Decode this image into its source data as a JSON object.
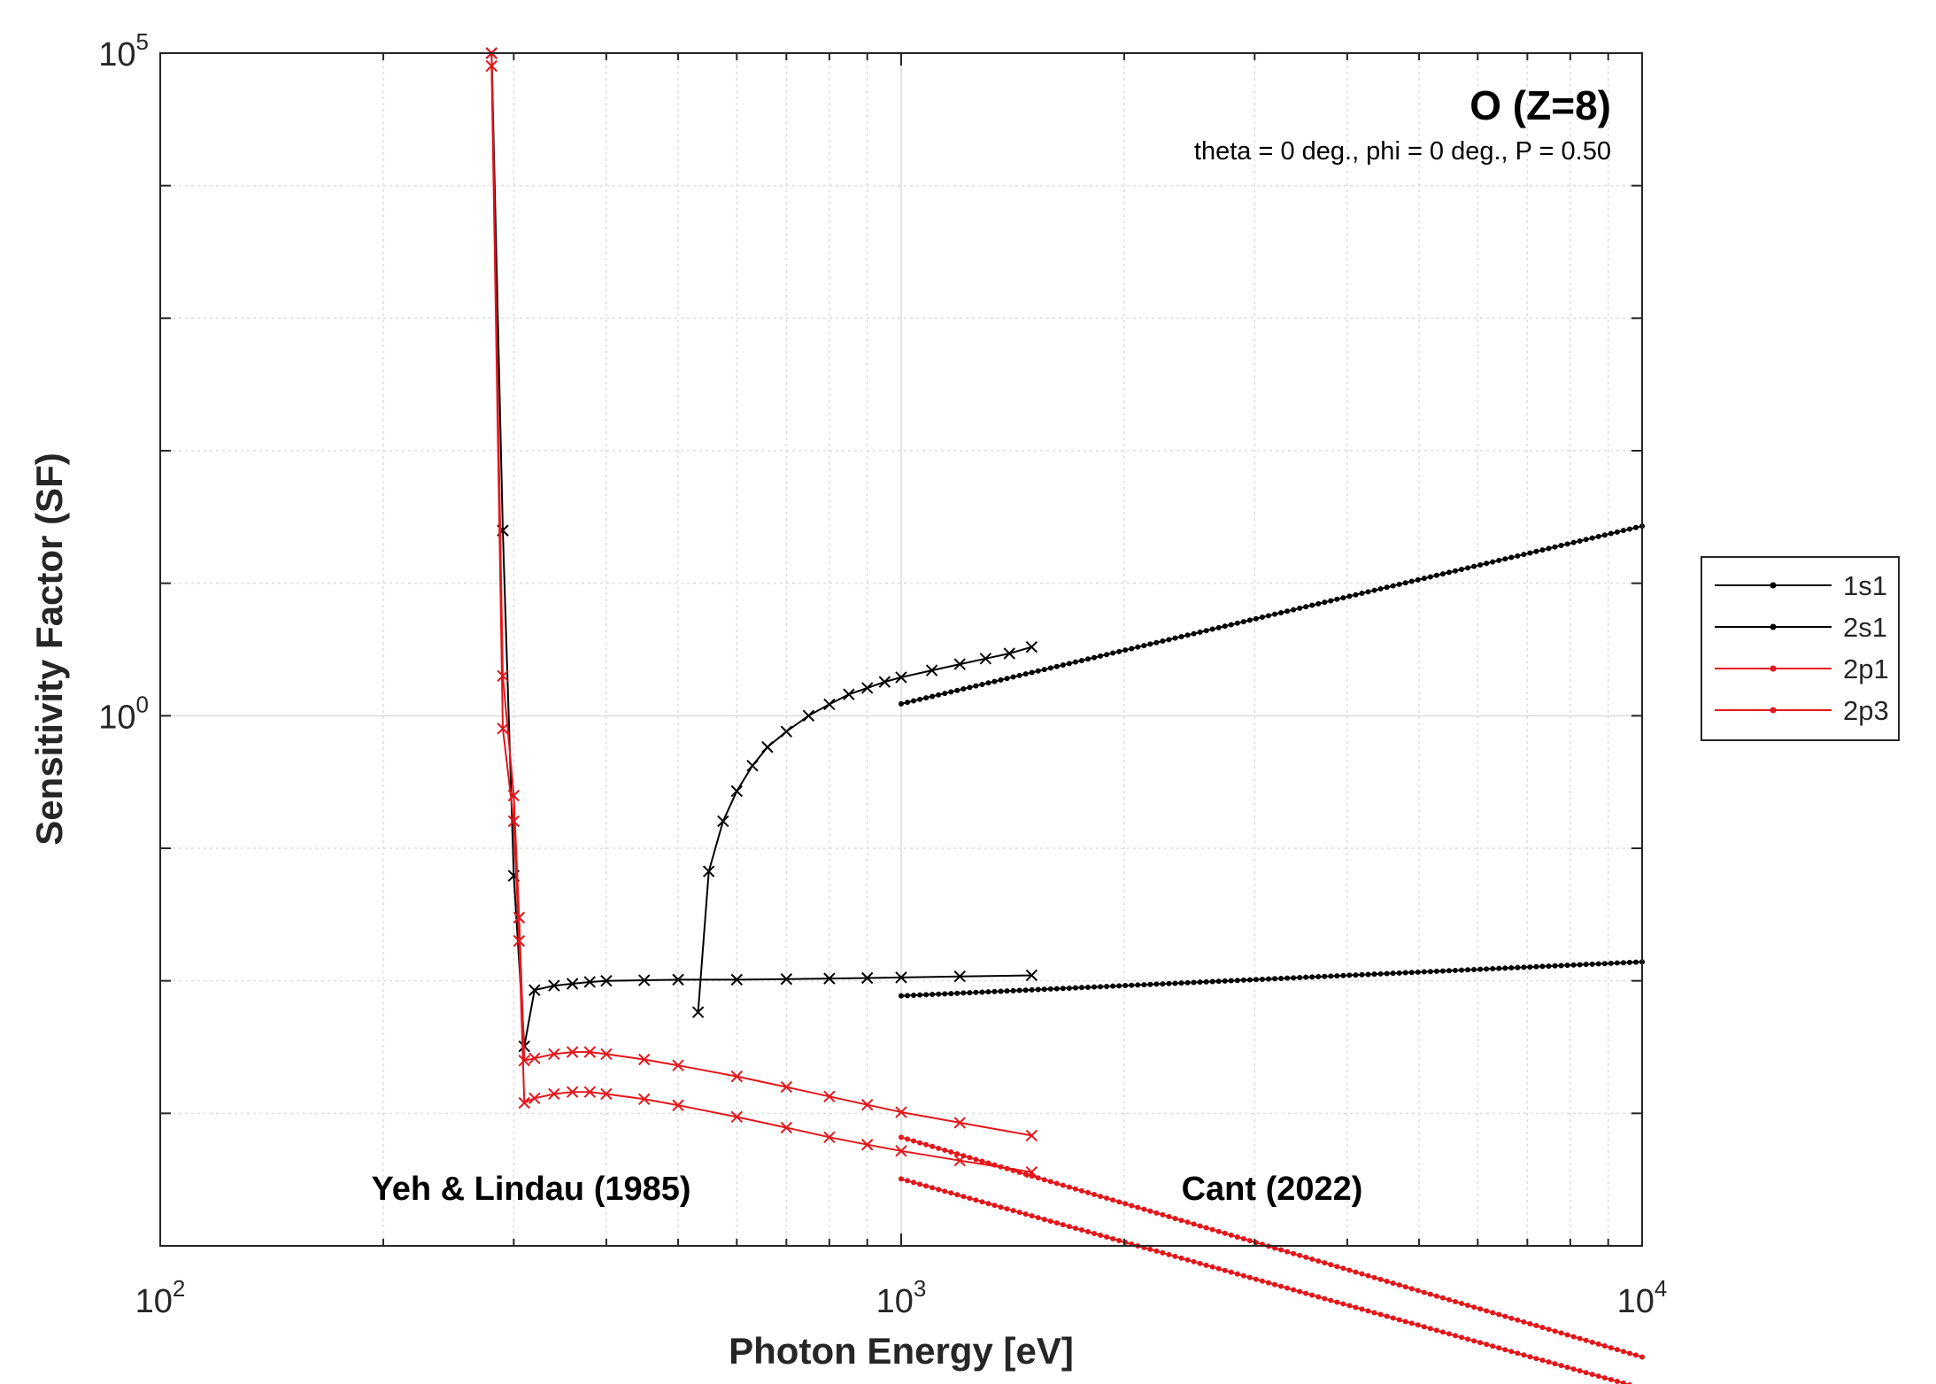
{
  "chart_data": {
    "type": "line",
    "title": "O (Z=8)",
    "subtitle": "theta = 0 deg., phi = 0 deg., P = 0.50",
    "xlabel": "Photon Energy [eV]",
    "ylabel": "Sensitivity Factor (SF)",
    "xscale": "log",
    "yscale": "log",
    "xlim": [
      100,
      10000
    ],
    "ylim": [
      0.0001,
      100000
    ],
    "xticks": [
      100,
      1000,
      10000
    ],
    "xtick_labels": [
      {
        "base": "10",
        "exp": "2"
      },
      {
        "base": "10",
        "exp": "3"
      },
      {
        "base": "10",
        "exp": "4"
      }
    ],
    "yticks": [
      1,
      100000
    ],
    "ytick_labels": [
      {
        "base": "10",
        "exp": "0"
      },
      {
        "base": "10",
        "exp": "5"
      }
    ],
    "grid": true,
    "legend_position": "outside-right",
    "colors": {
      "black": "#000000",
      "red": "#e3161b",
      "grid": "#dcdcdc",
      "axis": "#262626"
    },
    "annotations": [
      {
        "text": "Yeh & Lindau (1985)",
        "x": 200,
        "y": 0.00022
      },
      {
        "text": "Cant (2022)",
        "x": 3000,
        "y": 0.00022
      }
    ],
    "series": [
      {
        "name": "1s1",
        "color": "#000000",
        "marker": "dot",
        "source": "Cant (2022)",
        "x": [
          1000,
          10000
        ],
        "y": [
          1.23,
          27
        ],
        "points": 120
      },
      {
        "name": "2s1",
        "color": "#000000",
        "marker": "dot",
        "source": "Cant (2022)",
        "x": [
          1000,
          10000
        ],
        "y": [
          0.0077,
          0.0139
        ],
        "points": 120
      },
      {
        "name": "2p1",
        "color": "#e3161b",
        "marker": "dot",
        "source": "Cant (2022)",
        "x": [
          1000,
          10000
        ],
        "y": [
          0.00032,
          8.4e-06
        ],
        "points": 120
      },
      {
        "name": "2p3",
        "color": "#e3161b",
        "marker": "dot",
        "source": "Cant (2022)",
        "x": [
          1000,
          10000
        ],
        "y": [
          0.00066,
          1.45e-05
        ],
        "points": 120
      },
      {
        "color": "#000000",
        "marker": "x",
        "source": "Yeh & Lindau (1985)",
        "x": [
          532,
          550,
          575,
          600,
          630,
          660,
          700,
          750,
          800,
          850,
          900,
          950,
          1000,
          1100,
          1200,
          1300,
          1400,
          1500
        ],
        "y": [
          0.0058,
          0.067,
          0.16,
          0.27,
          0.42,
          0.58,
          0.76,
          1.0,
          1.22,
          1.45,
          1.62,
          1.8,
          1.95,
          2.2,
          2.45,
          2.7,
          2.95,
          3.3
        ]
      },
      {
        "color": "#000000",
        "marker": "x",
        "source": "Yeh & Lindau (1985)",
        "x": [
          280,
          290,
          300,
          310,
          320,
          340,
          360,
          380,
          400,
          450,
          500,
          600,
          700,
          800,
          900,
          1000,
          1200,
          1500
        ],
        "y": [
          100000,
          25,
          0.062,
          0.0032,
          0.0085,
          0.0092,
          0.0095,
          0.0098,
          0.01,
          0.0101,
          0.0102,
          0.0102,
          0.0103,
          0.0104,
          0.0105,
          0.0106,
          0.0108,
          0.011
        ]
      },
      {
        "color": "#e3161b",
        "marker": "x",
        "source": "Yeh & Lindau (1985)",
        "x": [
          280,
          290,
          300,
          305,
          310,
          320,
          340,
          360,
          380,
          400,
          450,
          500,
          600,
          700,
          800,
          900,
          1000,
          1200,
          1500
        ],
        "y": [
          80000,
          0.8,
          0.16,
          0.02,
          0.0012,
          0.0013,
          0.0014,
          0.00145,
          0.00145,
          0.0014,
          0.00128,
          0.00115,
          0.00094,
          0.00078,
          0.00066,
          0.00058,
          0.00052,
          0.00044,
          0.00036
        ]
      },
      {
        "color": "#e3161b",
        "marker": "x",
        "source": "Yeh & Lindau (1985)",
        "x": [
          280,
          290,
          300,
          305,
          310,
          320,
          340,
          360,
          380,
          400,
          450,
          500,
          600,
          700,
          800,
          900,
          1000,
          1200,
          1500
        ],
        "y": [
          100000,
          2.0,
          0.25,
          0.03,
          0.0025,
          0.0026,
          0.0028,
          0.0029,
          0.0029,
          0.0028,
          0.00255,
          0.0023,
          0.0019,
          0.00158,
          0.00134,
          0.00116,
          0.00102,
          0.00085,
          0.00068
        ]
      }
    ]
  }
}
